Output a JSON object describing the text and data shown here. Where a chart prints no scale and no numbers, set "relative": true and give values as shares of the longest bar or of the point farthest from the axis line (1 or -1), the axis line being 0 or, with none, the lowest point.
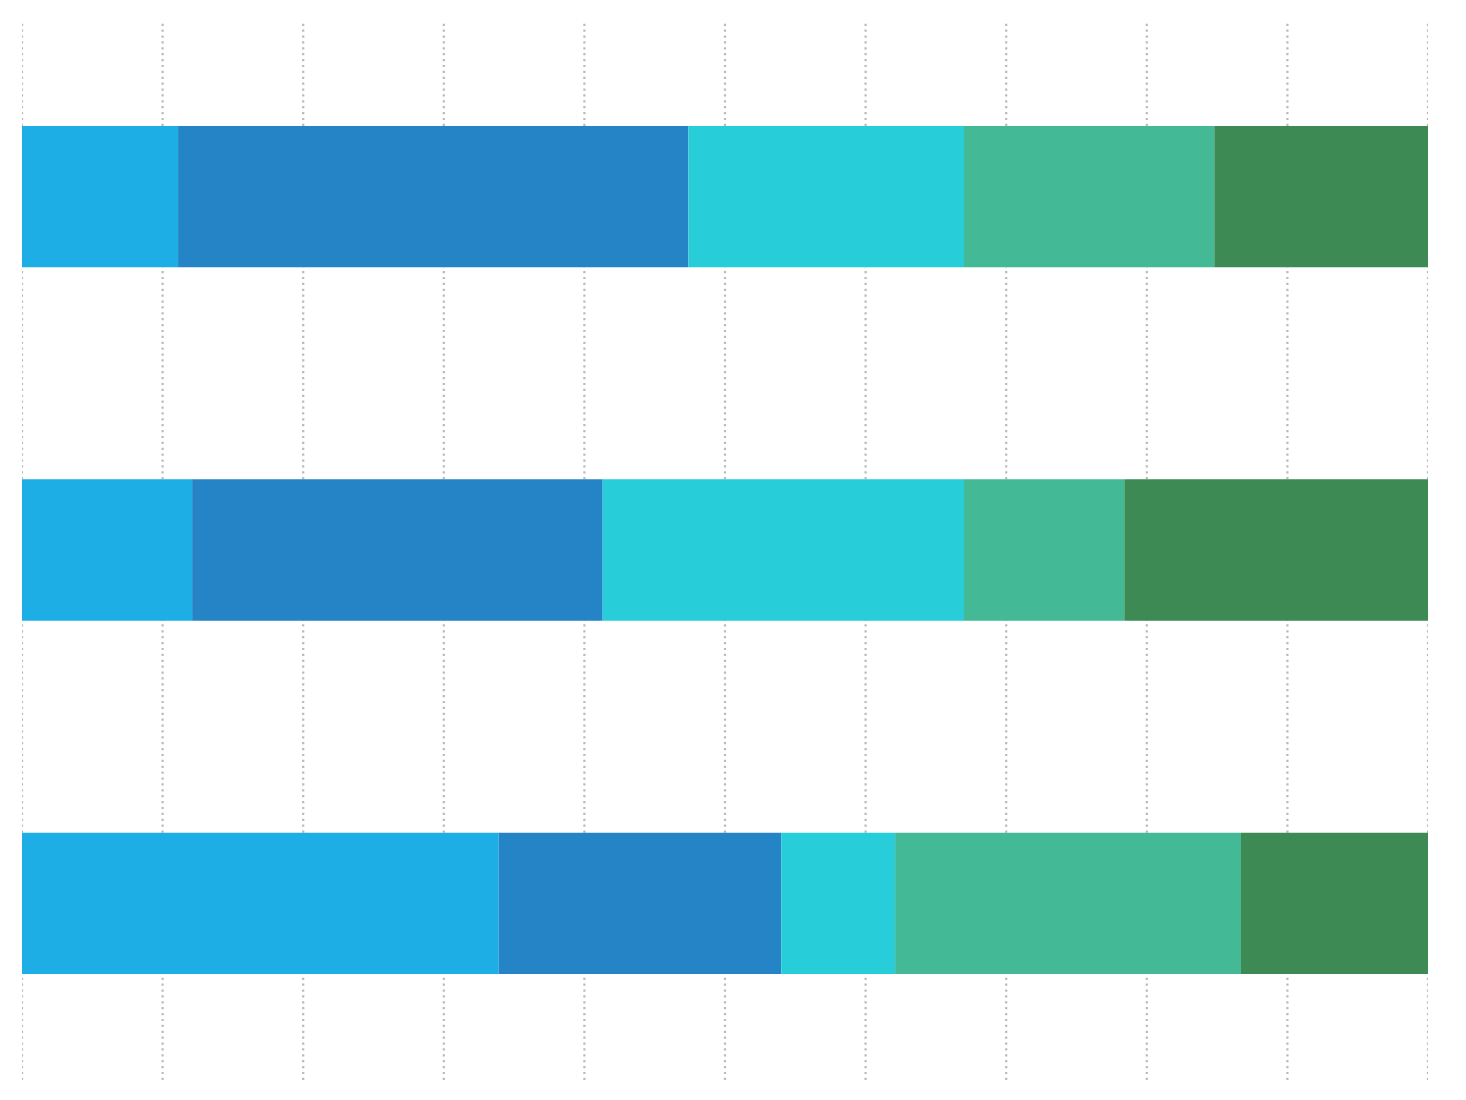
{
  "chart_data": {
    "type": "bar",
    "orientation": "horizontal",
    "stacked": true,
    "relative": true,
    "categories": [
      null,
      null,
      null
    ],
    "series": [
      {
        "color": "#1eaee6",
        "values": [
          0.111,
          0.121,
          0.339
        ]
      },
      {
        "color": "#2584c6",
        "values": [
          0.363,
          0.292,
          0.201
        ]
      },
      {
        "color": "#27cdd8",
        "values": [
          0.196,
          0.257,
          0.081
        ]
      },
      {
        "color": "#43b996",
        "values": [
          0.178,
          0.114,
          0.246
        ]
      },
      {
        "color": "#3e8a55",
        "values": [
          0.152,
          0.216,
          0.133
        ]
      }
    ],
    "grid": "x",
    "legend": false
  }
}
